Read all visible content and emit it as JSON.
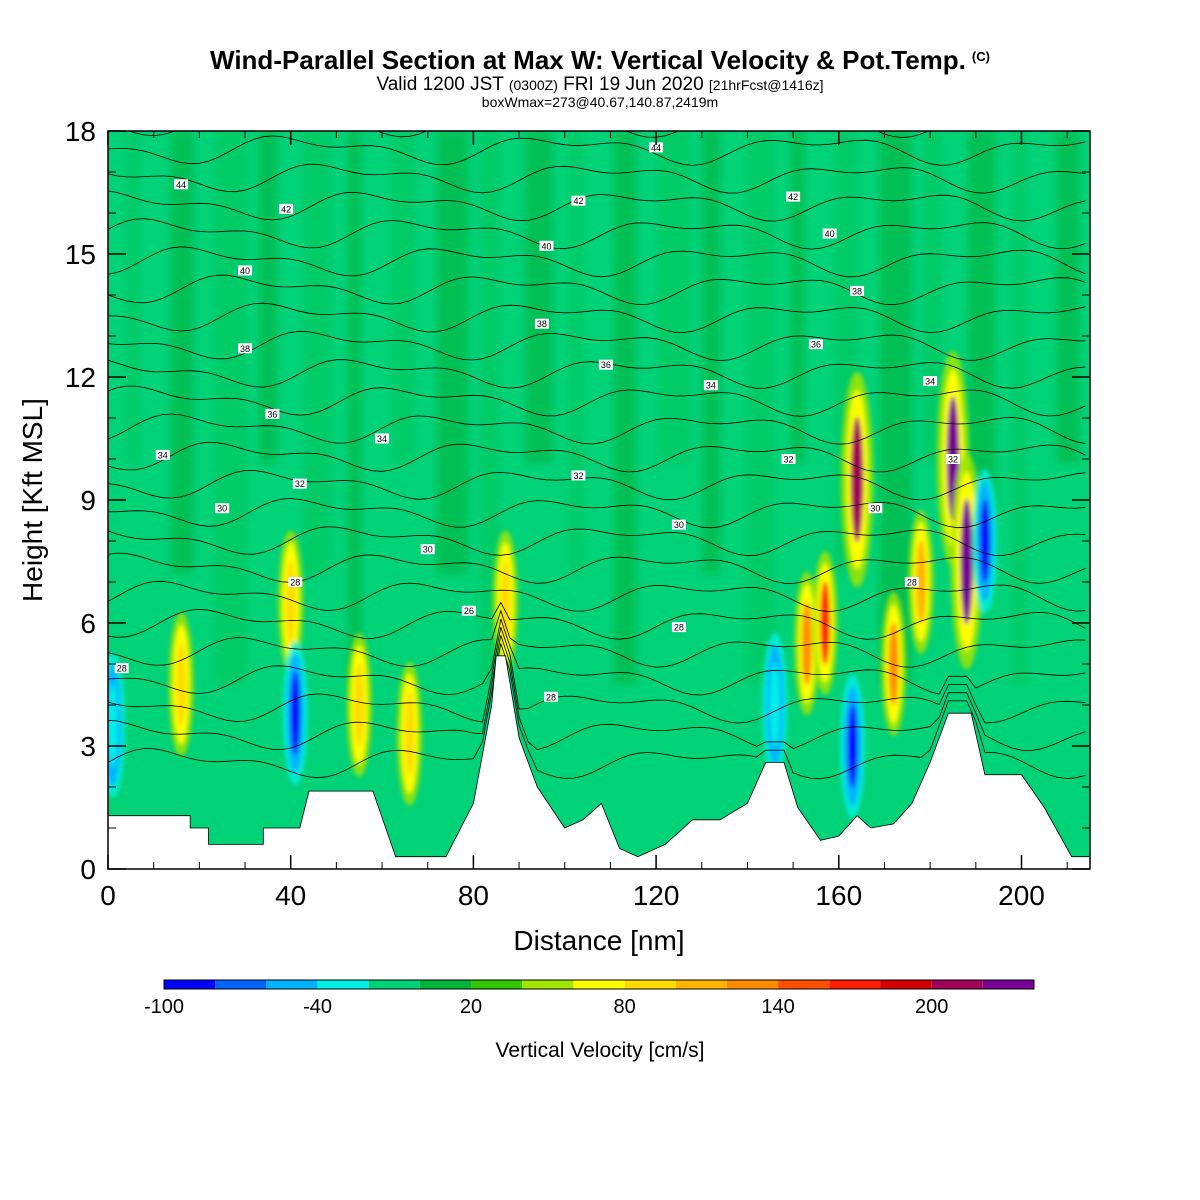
{
  "header": {
    "title": "Wind-Parallel Section at Max W: Vertical Velocity & Pot.Temp.",
    "copyright": "(C)",
    "valid_main": "Valid 1200 JST",
    "valid_z": "(0300Z)",
    "valid_date": "FRI 19 Jun 2020",
    "forecast": "[21hrFcst@1416z]",
    "boxmax": "boxWmax=273@40.67,140.87,2419m"
  },
  "chart_data": {
    "type": "heatmap",
    "xlabel": "Distance [nm]",
    "ylabel": "Height [Kft MSL]",
    "xlim": [
      0,
      215
    ],
    "ylim": [
      0,
      18
    ],
    "x_ticks": [
      0,
      40,
      80,
      120,
      160,
      200
    ],
    "y_ticks": [
      0,
      3,
      6,
      9,
      12,
      15,
      18
    ],
    "colorbar": {
      "label": "Vertical Velocity [cm/s]",
      "tick_labels": [
        "-100",
        "-40",
        "20",
        "80",
        "140",
        "200"
      ],
      "tick_values": [
        -100,
        -40,
        20,
        80,
        140,
        200
      ],
      "bins": [
        -100,
        -80,
        -60,
        -40,
        -20,
        0,
        20,
        40,
        60,
        80,
        100,
        120,
        140,
        160,
        180,
        200,
        220,
        240
      ],
      "colors": [
        "#0000ff",
        "#0064ff",
        "#00b4ff",
        "#00f0e6",
        "#00d278",
        "#00b43c",
        "#32c800",
        "#a0e600",
        "#ffff00",
        "#ffdc00",
        "#ffb400",
        "#ff8c00",
        "#ff5000",
        "#ff1e00",
        "#d20000",
        "#a0005a",
        "#780096"
      ]
    },
    "background_color": "#00d278",
    "terrain_profile": [
      [
        0,
        1.3
      ],
      [
        18,
        1.3
      ],
      [
        18,
        1.0
      ],
      [
        22,
        1.0
      ],
      [
        22,
        0.6
      ],
      [
        34,
        0.6
      ],
      [
        34,
        1.0
      ],
      [
        42,
        1.0
      ],
      [
        44,
        1.9
      ],
      [
        58,
        1.9
      ],
      [
        63,
        0.3
      ],
      [
        74,
        0.3
      ],
      [
        80,
        1.6
      ],
      [
        84,
        4.0
      ],
      [
        85,
        5.2
      ],
      [
        87,
        5.2
      ],
      [
        90,
        3.2
      ],
      [
        94,
        2.0
      ],
      [
        100,
        1.0
      ],
      [
        104,
        1.2
      ],
      [
        108,
        1.6
      ],
      [
        112,
        0.5
      ],
      [
        116,
        0.3
      ],
      [
        122,
        0.6
      ],
      [
        128,
        1.2
      ],
      [
        134,
        1.2
      ],
      [
        140,
        1.6
      ],
      [
        144,
        2.6
      ],
      [
        148,
        2.6
      ],
      [
        151,
        1.5
      ],
      [
        156,
        0.7
      ],
      [
        160,
        0.8
      ],
      [
        164,
        1.3
      ],
      [
        167,
        1.0
      ],
      [
        172,
        1.1
      ],
      [
        176,
        1.6
      ],
      [
        180,
        2.6
      ],
      [
        184,
        3.8
      ],
      [
        189,
        3.8
      ],
      [
        192,
        2.3
      ],
      [
        200,
        2.3
      ],
      [
        205,
        1.5
      ],
      [
        211,
        0.3
      ],
      [
        215,
        0.3
      ]
    ],
    "vertical_velocity_features": [
      {
        "x": 1,
        "z": 3.5,
        "value": -40
      },
      {
        "x": 16,
        "z": 4.5,
        "value": 80
      },
      {
        "x": 40,
        "z": 6.5,
        "value": 80
      },
      {
        "x": 41,
        "z": 3.8,
        "value": -100
      },
      {
        "x": 55,
        "z": 4.0,
        "value": 80
      },
      {
        "x": 66,
        "z": 3.3,
        "value": 80
      },
      {
        "x": 87,
        "z": 6.5,
        "value": 80
      },
      {
        "x": 146,
        "z": 4.0,
        "value": -40
      },
      {
        "x": 153,
        "z": 5.5,
        "value": 120
      },
      {
        "x": 157,
        "z": 6.0,
        "value": 160
      },
      {
        "x": 163,
        "z": 3.0,
        "value": -100
      },
      {
        "x": 164,
        "z": 9.5,
        "value": 200
      },
      {
        "x": 172,
        "z": 5.0,
        "value": 120
      },
      {
        "x": 178,
        "z": 7.0,
        "value": 100
      },
      {
        "x": 185,
        "z": 10.0,
        "value": 240
      },
      {
        "x": 188,
        "z": 7.5,
        "value": 220
      },
      {
        "x": 192,
        "z": 8.0,
        "value": -100
      }
    ],
    "theta_contour_labels": [
      {
        "text": "28",
        "x": 3,
        "z": 4.9
      },
      {
        "text": "34",
        "x": 12,
        "z": 10.1
      },
      {
        "text": "44",
        "x": 16,
        "z": 16.7
      },
      {
        "text": "30",
        "x": 25,
        "z": 8.8
      },
      {
        "text": "40",
        "x": 30,
        "z": 14.6
      },
      {
        "text": "38",
        "x": 30,
        "z": 12.7
      },
      {
        "text": "36",
        "x": 36,
        "z": 11.1
      },
      {
        "text": "42",
        "x": 39,
        "z": 16.1
      },
      {
        "text": "28",
        "x": 41,
        "z": 7.0
      },
      {
        "text": "32",
        "x": 42,
        "z": 9.4
      },
      {
        "text": "34",
        "x": 60,
        "z": 10.5
      },
      {
        "text": "30",
        "x": 70,
        "z": 7.8
      },
      {
        "text": "26",
        "x": 79,
        "z": 6.3
      },
      {
        "text": "28",
        "x": 97,
        "z": 4.2
      },
      {
        "text": "38",
        "x": 95,
        "z": 13.3
      },
      {
        "text": "40",
        "x": 96,
        "z": 15.2
      },
      {
        "text": "42",
        "x": 103,
        "z": 16.3
      },
      {
        "text": "32",
        "x": 103,
        "z": 9.6
      },
      {
        "text": "36",
        "x": 109,
        "z": 12.3
      },
      {
        "text": "44",
        "x": 120,
        "z": 17.6
      },
      {
        "text": "30",
        "x": 125,
        "z": 8.4
      },
      {
        "text": "28",
        "x": 125,
        "z": 5.9
      },
      {
        "text": "34",
        "x": 132,
        "z": 11.8
      },
      {
        "text": "32",
        "x": 149,
        "z": 10.0
      },
      {
        "text": "42",
        "x": 150,
        "z": 16.4
      },
      {
        "text": "36",
        "x": 155,
        "z": 12.8
      },
      {
        "text": "40",
        "x": 158,
        "z": 15.5
      },
      {
        "text": "38",
        "x": 164,
        "z": 14.1
      },
      {
        "text": "30",
        "x": 168,
        "z": 8.8
      },
      {
        "text": "28",
        "x": 176,
        "z": 7.0
      },
      {
        "text": "34",
        "x": 180,
        "z": 11.9
      },
      {
        "text": "32",
        "x": 185,
        "z": 10.0
      }
    ]
  }
}
